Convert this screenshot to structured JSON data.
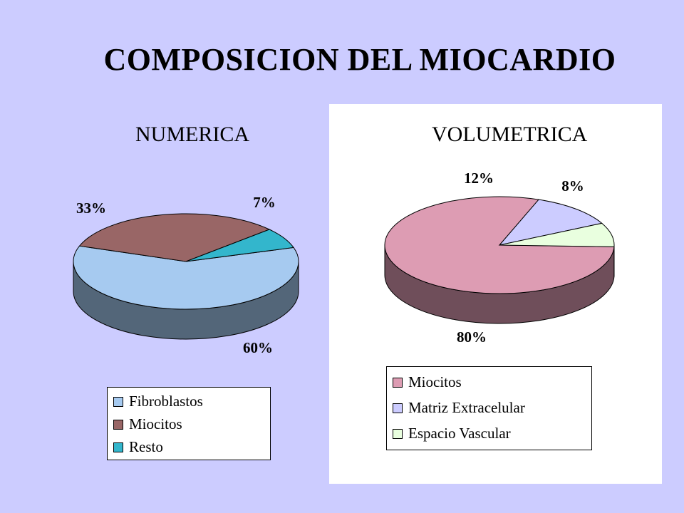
{
  "slide": {
    "title": "COMPOSICION DEL MIOCARDIO",
    "background": "#ccccff"
  },
  "chart_data": [
    {
      "type": "pie",
      "subtitle": "NUMERICA",
      "categories": [
        "Fibroblastos",
        "Miocitos",
        "Resto"
      ],
      "values": [
        60,
        33,
        7
      ],
      "labels": [
        "60%",
        "33%",
        "7%"
      ],
      "colors": [
        "#a6caf0",
        "#996666",
        "#33b6cc"
      ],
      "side_colors": [
        "#536679",
        "#4d3333",
        "#1a5b66"
      ],
      "legend": [
        "Fibroblastos",
        "Miocitos",
        "Resto"
      ],
      "legend_placement": "bottom",
      "style": "3d"
    },
    {
      "type": "pie",
      "subtitle": "VOLUMETRICA",
      "categories": [
        "Miocitos",
        "Matriz Extracelular",
        "Espacio Vascular"
      ],
      "values": [
        80,
        12,
        8
      ],
      "labels": [
        "80%",
        "12%",
        "8%"
      ],
      "colors": [
        "#dd9cb3",
        "#ccccff",
        "#e9ffdf"
      ],
      "side_colors": [
        "#6f4e5a",
        "#666680",
        "#757f70"
      ],
      "legend": [
        "Miocitos",
        "Matriz Extracelular",
        "Espacio Vascular"
      ],
      "legend_placement": "bottom",
      "style": "3d"
    }
  ]
}
